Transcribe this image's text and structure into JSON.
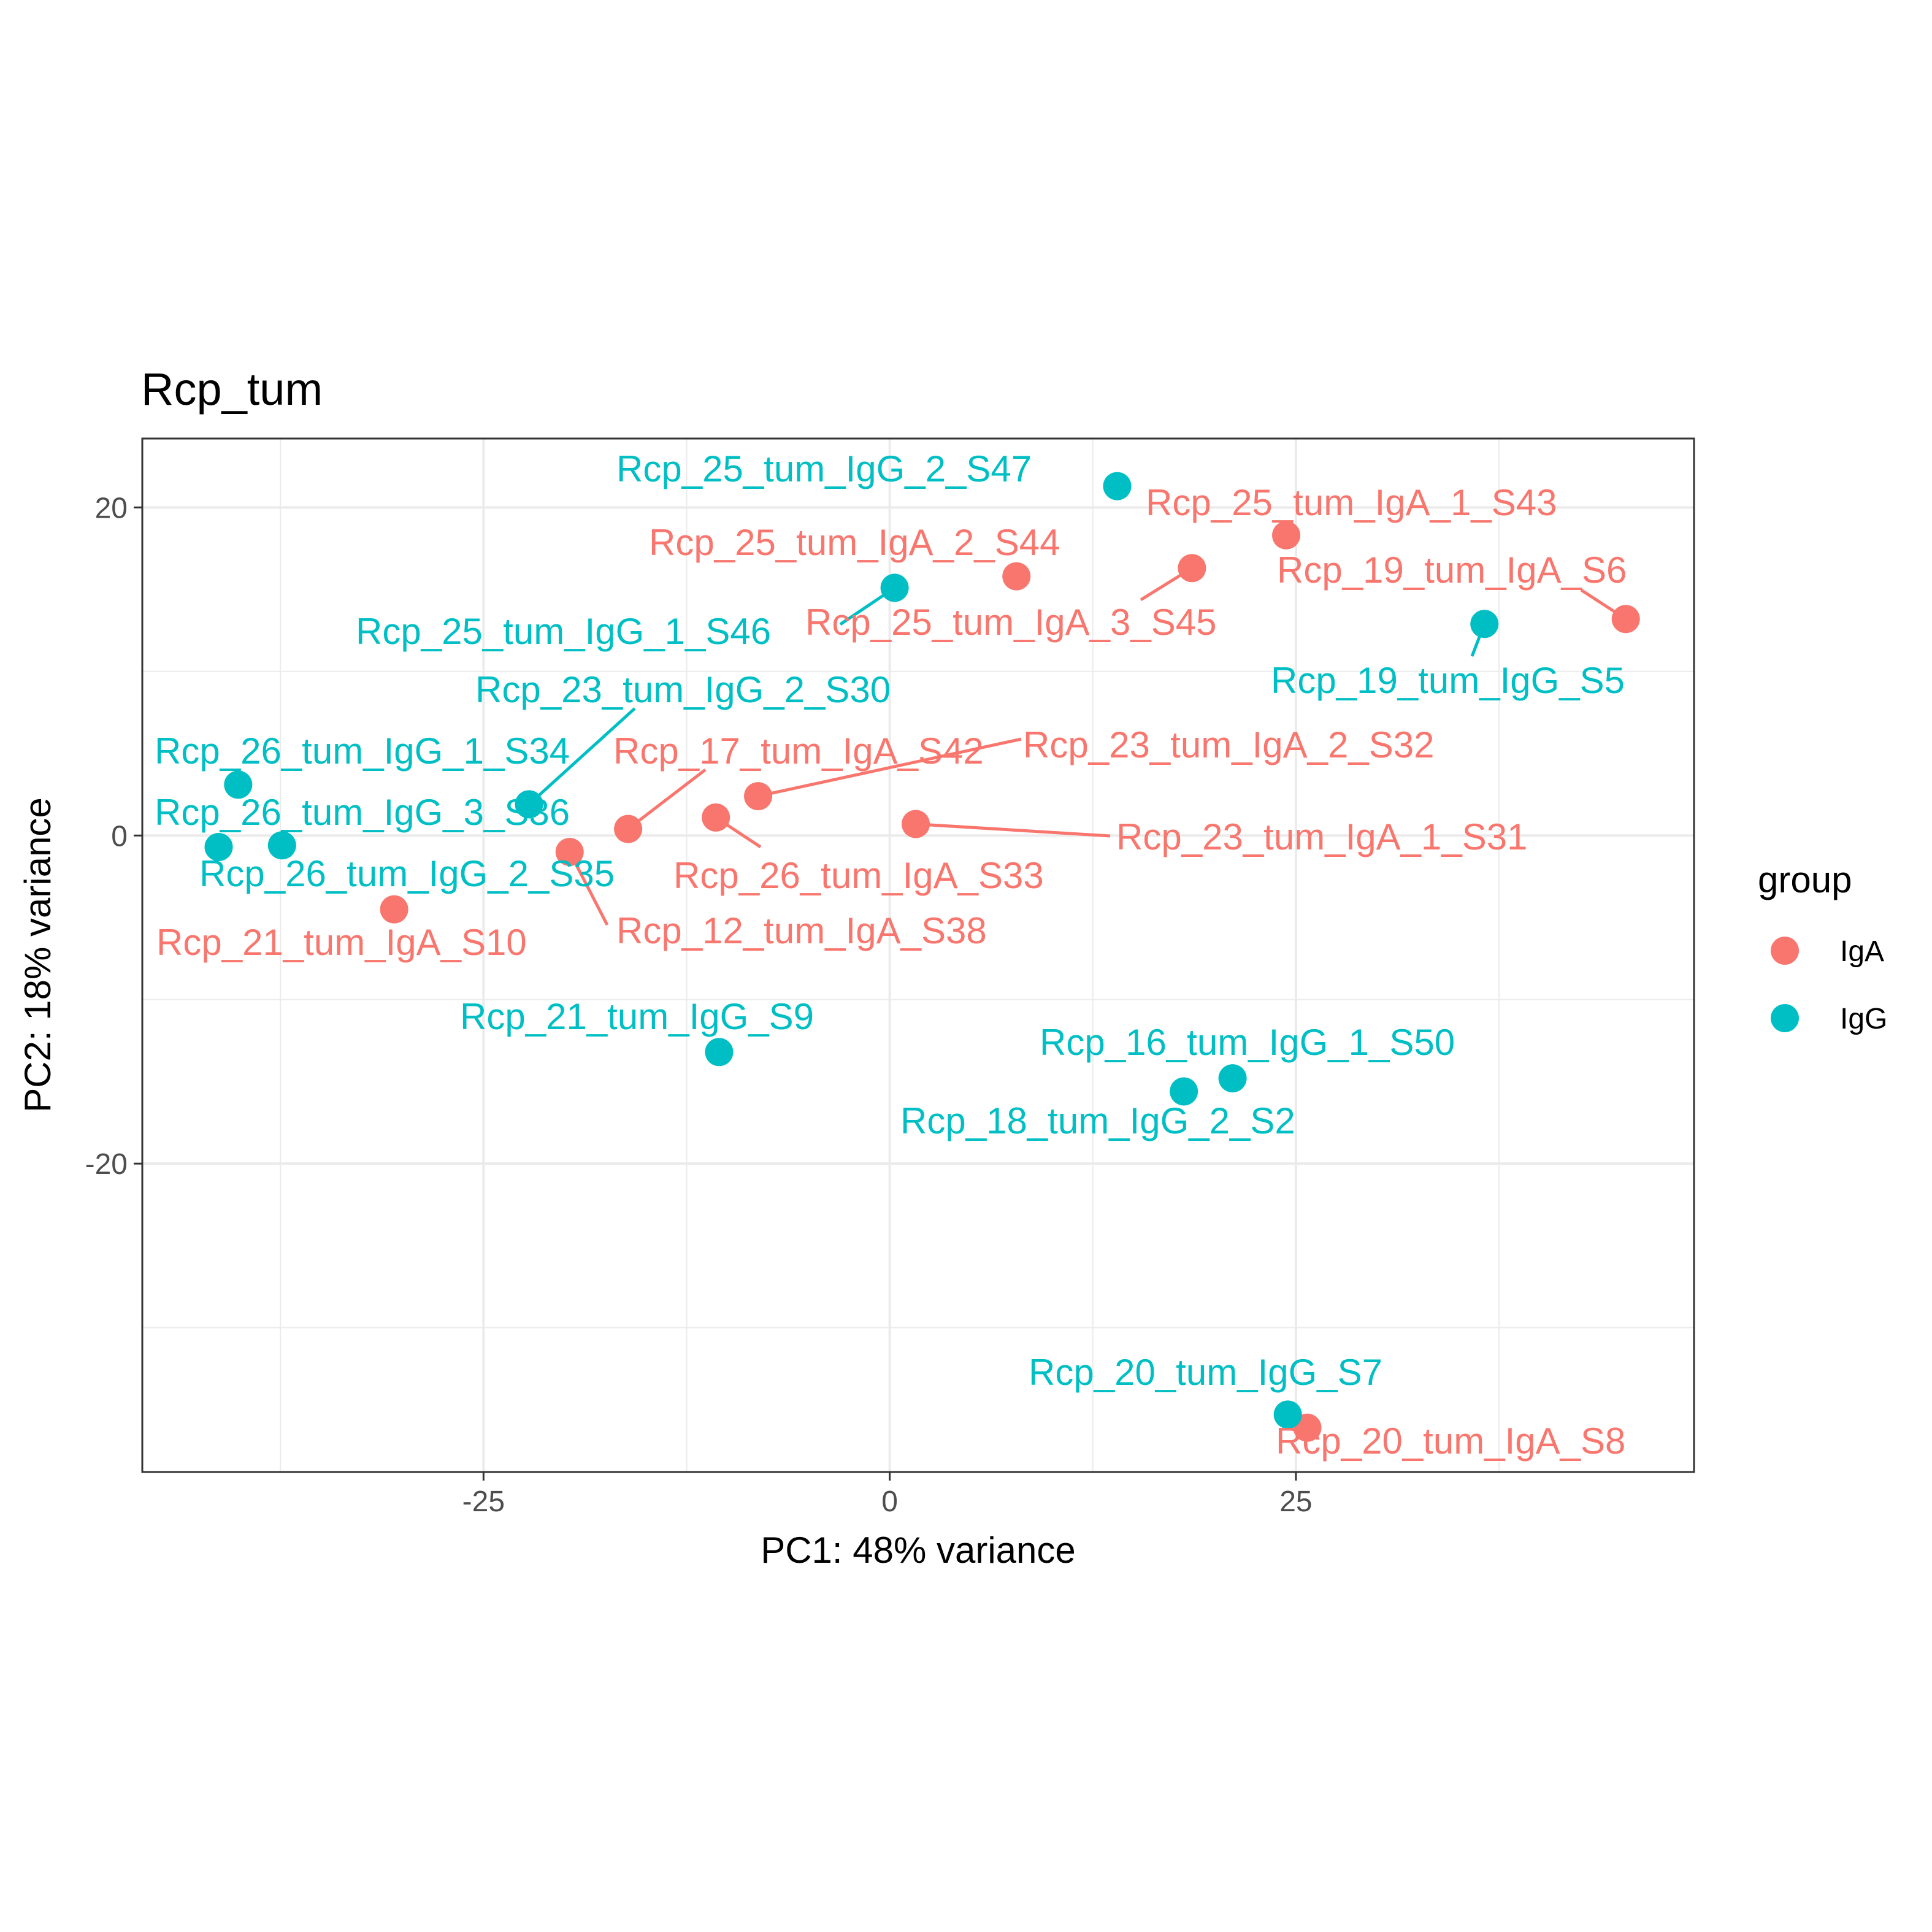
{
  "chart_data": {
    "type": "scatter",
    "title": "Rcp_tum",
    "xlabel": "PC1: 48% variance",
    "ylabel": "PC2: 18% variance",
    "xlim": [
      -46,
      49.5
    ],
    "ylim": [
      -38.8,
      24.2
    ],
    "x_ticks": [
      -25,
      0,
      25
    ],
    "x_tick_labels": [
      "-25",
      "0",
      "25"
    ],
    "y_ticks": [
      -20,
      0,
      20
    ],
    "y_tick_labels": [
      "-20",
      "0",
      "20"
    ],
    "grid": true,
    "legend": {
      "title": "group",
      "placement": "right",
      "entries": [
        {
          "label": "IgA",
          "color": "#F8766D"
        },
        {
          "label": "IgG",
          "color": "#00BFC4"
        }
      ]
    },
    "series": [
      {
        "name": "IgA",
        "color": "#F8766D",
        "points": [
          {
            "label": "Rcp_25_tum_IgA_1_S43",
            "x": 24.4,
            "y": 18.3
          },
          {
            "label": "Rcp_25_tum_IgA_2_S44",
            "x": 7.8,
            "y": 15.8
          },
          {
            "label": "Rcp_25_tum_IgA_3_S45",
            "x": 18.6,
            "y": 16.3
          },
          {
            "label": "Rcp_19_tum_IgA_S6",
            "x": 45.3,
            "y": 13.2
          },
          {
            "label": "Rcp_17_tum_IgA_S42",
            "x": -16.1,
            "y": 0.4
          },
          {
            "label": "Rcp_23_tum_IgA_2_S32",
            "x": -8.1,
            "y": 2.4
          },
          {
            "label": "Rcp_23_tum_IgA_1_S31",
            "x": 1.6,
            "y": 0.7
          },
          {
            "label": "Rcp_26_tum_IgA_S33",
            "x": -10.7,
            "y": 1.1
          },
          {
            "label": "Rcp_12_tum_IgA_S38",
            "x": -19.7,
            "y": -1.0
          },
          {
            "label": "Rcp_21_tum_IgA_S10",
            "x": -30.5,
            "y": -4.5
          },
          {
            "label": "Rcp_20_tum_IgA_S8",
            "x": 25.7,
            "y": -36.1
          }
        ]
      },
      {
        "name": "IgG",
        "color": "#00BFC4",
        "points": [
          {
            "label": "Rcp_25_tum_IgG_2_S47",
            "x": 14.0,
            "y": 21.3
          },
          {
            "label": "Rcp_25_tum_IgG_1_S46",
            "x": 0.3,
            "y": 15.1
          },
          {
            "label": "Rcp_19_tum_IgG_S5",
            "x": 36.6,
            "y": 12.9
          },
          {
            "label": "Rcp_23_tum_IgG_2_S30",
            "x": -22.2,
            "y": 1.9
          },
          {
            "label": "Rcp_26_tum_IgG_1_S34",
            "x": -40.1,
            "y": 3.1
          },
          {
            "label": "Rcp_26_tum_IgG_3_S36",
            "x": -41.3,
            "y": -0.7
          },
          {
            "label": "Rcp_26_tum_IgG_2_S35",
            "x": -37.4,
            "y": -0.6
          },
          {
            "label": "Rcp_21_tum_IgG_S9",
            "x": -10.5,
            "y": -13.2
          },
          {
            "label": "Rcp_16_tum_IgG_1_S50",
            "x": 21.1,
            "y": -14.8
          },
          {
            "label": "Rcp_18_tum_IgG_2_S2",
            "x": 18.1,
            "y": -15.6
          },
          {
            "label": "Rcp_20_tum_IgG_S7",
            "x": 24.5,
            "y": -35.3
          }
        ]
      }
    ]
  }
}
